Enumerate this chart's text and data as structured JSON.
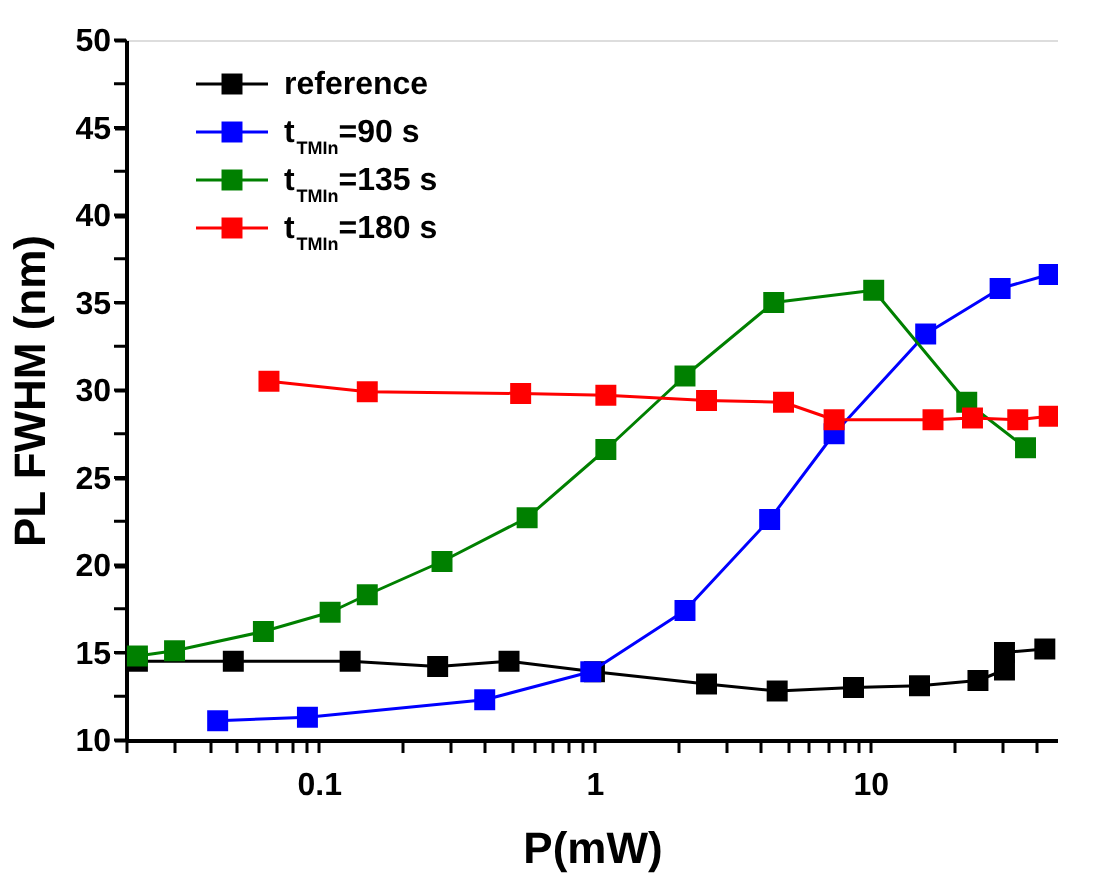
{
  "chart_data": {
    "type": "line",
    "xlabel": "P(mW)",
    "ylabel": "PL FWHM (nm)",
    "log": "x",
    "grid": false,
    "marker": "square",
    "line_style": "solid",
    "legend": "top left",
    "xlim": [
      0.02,
      48
    ],
    "xticks": [
      {
        "value": 0.02,
        "label": null
      },
      {
        "value": 0.03,
        "label": null
      },
      {
        "value": 0.04,
        "label": null
      },
      {
        "value": 0.05,
        "label": null
      },
      {
        "value": 0.06,
        "label": null
      },
      {
        "value": 0.07,
        "label": null
      },
      {
        "value": 0.08,
        "label": null
      },
      {
        "value": 0.09,
        "label": null
      },
      0.1,
      {
        "value": 0.2,
        "label": null
      },
      {
        "value": 0.3,
        "label": null
      },
      {
        "value": 0.4,
        "label": null
      },
      {
        "value": 0.5,
        "label": null
      },
      {
        "value": 0.6,
        "label": null
      },
      {
        "value": 0.7,
        "label": null
      },
      {
        "value": 0.8,
        "label": null
      },
      {
        "value": 0.9,
        "label": null
      },
      1,
      {
        "value": 2,
        "label": null
      },
      {
        "value": 3,
        "label": null
      },
      {
        "value": 4,
        "label": null
      },
      {
        "value": 5,
        "label": null
      },
      {
        "value": 6,
        "label": null
      },
      {
        "value": 7,
        "label": null
      },
      {
        "value": 8,
        "label": null
      },
      {
        "value": 9,
        "label": null
      },
      10,
      {
        "value": 20,
        "label": null
      },
      {
        "value": 30,
        "label": null
      },
      {
        "value": 40,
        "label": null
      }
    ],
    "ylim": [
      10,
      50
    ],
    "yticks": [
      10,
      {
        "value": 12.5,
        "label": null
      },
      15,
      {
        "value": 17.5,
        "label": null
      },
      20,
      {
        "value": 22.5,
        "label": null
      },
      25,
      {
        "value": 27.5,
        "label": null
      },
      30,
      {
        "value": 32.5,
        "label": null
      },
      35,
      {
        "value": 37.5,
        "label": null
      },
      40,
      {
        "value": 42.5,
        "label": null
      },
      45,
      {
        "value": 47.5,
        "label": null
      },
      50
    ],
    "series": [
      {
        "name": "reference",
        "color": "#000000",
        "x": [
          0.022,
          0.049,
          0.13,
          0.27,
          0.49,
          1.0,
          2.55,
          4.6,
          8.7,
          15.1,
          24.6,
          30.7,
          30.7,
          43
        ],
        "values": [
          14.5,
          14.5,
          14.5,
          14.2,
          14.5,
          13.9,
          13.2,
          12.8,
          13.0,
          13.1,
          13.4,
          14.0,
          15.0,
          15.2
        ]
      },
      {
        "name": "t$_{TMIn}$=90 s",
        "color": "#0000ff",
        "x": [
          0.043,
          0.091,
          0.4,
          0.97,
          2.13,
          4.32,
          7.4,
          15.9,
          29.6,
          44.6
        ],
        "values": [
          11.1,
          11.3,
          12.3,
          13.9,
          17.4,
          22.6,
          27.5,
          33.2,
          35.8,
          36.6
        ]
      },
      {
        "name": "t$_{TMIn}$=135 s",
        "color": "#008000",
        "x": [
          0.022,
          0.03,
          0.063,
          0.11,
          0.15,
          0.28,
          0.57,
          1.1,
          2.13,
          4.47,
          10.3,
          22.4,
          36.6
        ],
        "values": [
          14.8,
          15.1,
          16.2,
          17.3,
          18.3,
          20.2,
          22.7,
          26.6,
          30.8,
          35.0,
          35.7,
          29.3,
          26.7
        ]
      },
      {
        "name": "t$_{TMIn}$=180 s",
        "color": "#ff0000",
        "x": [
          0.066,
          0.15,
          0.54,
          1.1,
          2.55,
          4.85,
          7.4,
          16.9,
          23.5,
          34.3,
          44.6
        ],
        "values": [
          30.5,
          29.9,
          29.8,
          29.7,
          29.4,
          29.3,
          28.3,
          28.3,
          28.4,
          28.3,
          28.5
        ]
      }
    ]
  }
}
